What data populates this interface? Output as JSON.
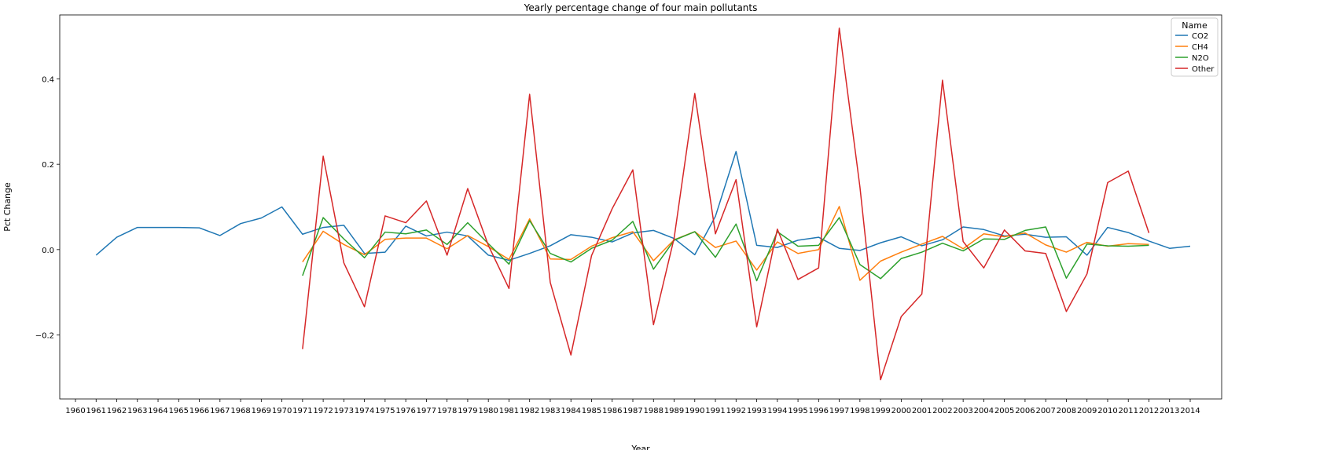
{
  "chart_data": {
    "type": "line",
    "title": "Yearly percentage change of four main pollutants",
    "xlabel": "Year",
    "ylabel": "Pct Change",
    "xlim": [
      1960,
      2014
    ],
    "ylim": [
      -0.35,
      0.55
    ],
    "yticks": [
      -0.2,
      0.0,
      0.2,
      0.4
    ],
    "ytick_labels": [
      "−0.2",
      "0.0",
      "0.2",
      "0.4"
    ],
    "xticks": [
      1960,
      1961,
      1962,
      1963,
      1964,
      1965,
      1966,
      1967,
      1968,
      1969,
      1970,
      1971,
      1972,
      1973,
      1974,
      1975,
      1976,
      1977,
      1978,
      1979,
      1980,
      1981,
      1982,
      1983,
      1984,
      1985,
      1986,
      1987,
      1988,
      1989,
      1990,
      1991,
      1992,
      1993,
      1994,
      1995,
      1996,
      1997,
      1998,
      1999,
      2000,
      2001,
      2002,
      2003,
      2004,
      2005,
      2006,
      2007,
      2008,
      2009,
      2010,
      2011,
      2012,
      2013,
      2014
    ],
    "legend": {
      "title": "Name",
      "position": "top-right"
    },
    "series": [
      {
        "name": "CO2",
        "color": "#1f77b4",
        "x_start": 1961,
        "values": [
          -0.013,
          0.029,
          0.052,
          0.052,
          0.052,
          0.051,
          0.033,
          0.061,
          0.074,
          0.1,
          0.036,
          0.052,
          0.057,
          -0.009,
          -0.006,
          0.055,
          0.032,
          0.041,
          0.032,
          -0.013,
          -0.025,
          -0.009,
          0.009,
          0.035,
          0.029,
          0.018,
          0.039,
          0.045,
          0.026,
          -0.012,
          0.078,
          0.23,
          0.01,
          0.005,
          0.022,
          0.029,
          0.003,
          -0.002,
          0.016,
          0.03,
          0.009,
          0.023,
          0.053,
          0.047,
          0.032,
          0.036,
          0.029,
          0.03,
          -0.013,
          0.052,
          0.04,
          0.02,
          0.003,
          0.008
        ]
      },
      {
        "name": "CH4",
        "color": "#ff7f0e",
        "x_start": 1971,
        "values": [
          -0.029,
          0.043,
          0.012,
          -0.012,
          0.024,
          0.027,
          0.027,
          0.002,
          0.033,
          0.007,
          -0.023,
          0.072,
          -0.022,
          -0.023,
          0.008,
          0.028,
          0.042,
          -0.026,
          0.023,
          0.042,
          0.005,
          0.02,
          -0.048,
          0.018,
          -0.009,
          0.0,
          0.101,
          -0.072,
          -0.027,
          -0.006,
          0.013,
          0.031,
          0.002,
          0.037,
          0.03,
          0.039,
          0.011,
          -0.006,
          0.017,
          0.008,
          0.014,
          0.012
        ]
      },
      {
        "name": "N2O",
        "color": "#2ca02c",
        "x_start": 1971,
        "values": [
          -0.061,
          0.075,
          0.025,
          -0.019,
          0.041,
          0.037,
          0.046,
          0.012,
          0.063,
          0.014,
          -0.034,
          0.068,
          -0.009,
          -0.029,
          0.003,
          0.022,
          0.066,
          -0.046,
          0.022,
          0.042,
          -0.018,
          0.06,
          -0.073,
          0.042,
          0.008,
          0.01,
          0.075,
          -0.035,
          -0.068,
          -0.021,
          -0.006,
          0.015,
          -0.003,
          0.025,
          0.024,
          0.045,
          0.053,
          -0.067,
          0.013,
          0.009,
          0.008,
          0.01
        ]
      },
      {
        "name": "Other",
        "color": "#d62728",
        "x_start": 1971,
        "values": [
          -0.233,
          0.219,
          -0.031,
          -0.134,
          0.079,
          0.063,
          0.114,
          -0.013,
          0.143,
          0.01,
          -0.091,
          0.364,
          -0.077,
          -0.247,
          -0.014,
          0.096,
          0.187,
          -0.176,
          0.027,
          0.366,
          0.037,
          0.164,
          -0.181,
          0.048,
          -0.07,
          -0.043,
          0.519,
          0.147,
          -0.305,
          -0.157,
          -0.104,
          0.397,
          0.019,
          -0.043,
          0.046,
          -0.003,
          -0.009,
          -0.145,
          -0.057,
          0.157,
          0.184,
          0.039
        ]
      }
    ]
  }
}
